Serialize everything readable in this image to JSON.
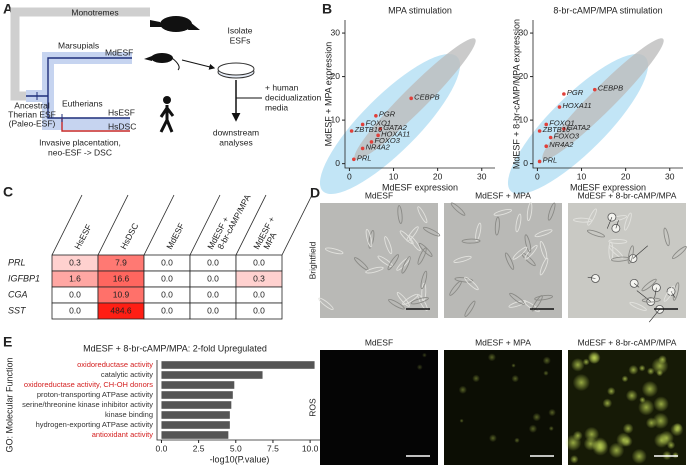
{
  "panel_labels": [
    "A",
    "B",
    "C",
    "D",
    "E"
  ],
  "diagram_a": {
    "clades": [
      "Monotremes",
      "Marsupials",
      "Eutherians"
    ],
    "tips": [
      "MdESF",
      "HsESF",
      "HsDSC"
    ],
    "ancestor": [
      "Ancestral",
      "Therian ESF",
      "(Paleo-ESF)"
    ],
    "innovation": [
      "Invasive placentation,",
      "neo-ESF -> DSC"
    ],
    "steps": {
      "isolate": [
        "Isolate",
        "ESFs"
      ],
      "media": [
        "+ human",
        "decidualization",
        "media"
      ],
      "analyses": [
        "downstream",
        "analyses"
      ]
    }
  },
  "chart_data": [
    {
      "type": "scatter",
      "title": "MPA stimulation",
      "x_label": "MdESF expression",
      "y_label": "MdESF + MPA expression",
      "xlim": [
        -1,
        33
      ],
      "ylim": [
        -1,
        33
      ],
      "xticks": [
        0,
        10,
        20,
        30
      ],
      "yticks": [
        0,
        10,
        20,
        30
      ],
      "color": "#e0403a",
      "labels": [
        "PRL",
        "NR4A2",
        "FOXO3",
        "HOXA11",
        "GATA2",
        "ZBTB16",
        "FOXO1",
        "PGR",
        "CEBPB"
      ],
      "x": [
        1,
        3,
        5,
        6.5,
        7,
        0.5,
        3,
        6,
        14
      ],
      "values": [
        1,
        3.5,
        5,
        6.5,
        8,
        7.5,
        9,
        11,
        15
      ]
    },
    {
      "type": "scatter",
      "title": "8-br-cAMP/MPA stimulation",
      "x_label": "MdESF expression",
      "y_label": "MdESF + 8-br-cAMP/MPA expression",
      "xlim": [
        -1,
        33
      ],
      "ylim": [
        -1,
        33
      ],
      "xticks": [
        0,
        10,
        20,
        30
      ],
      "yticks": [
        0,
        10,
        20,
        30
      ],
      "color": "#e0403a",
      "labels": [
        "PRL",
        "NR4A2",
        "FOXO3",
        "GATA2",
        "ZBTB16",
        "FOXO1",
        "HOXA11",
        "PGR",
        "CEBPB"
      ],
      "x": [
        0.5,
        2,
        3,
        6,
        0.5,
        2,
        5,
        6,
        13
      ],
      "values": [
        0.5,
        4,
        6,
        8,
        7.5,
        9,
        13,
        16,
        17
      ]
    },
    {
      "type": "bar",
      "orientation": "horizontal",
      "title": "MdESF + 8-br-cAMP/MPA: 2-fold Upregulated",
      "x_label": "-log10(P.value)",
      "y_label": "GO: Molecular Function",
      "color": "#555555",
      "categories": [
        "oxidoreductase activity",
        "catalytic activity",
        "oxidoreductase activity, CH-OH donors",
        "proton-transporting ATPase activity",
        "serine/threonine kinase inhibitor activity",
        "kinase binding",
        "hydrogen-exporting ATPase activity",
        "antioxidant activity"
      ],
      "category_colors": [
        "#d42020",
        "#333333",
        "#d42020",
        "#333333",
        "#333333",
        "#333333",
        "#333333",
        "#d42020"
      ],
      "values": [
        10.3,
        6.8,
        4.9,
        4.8,
        4.7,
        4.6,
        4.6,
        4.5
      ],
      "xlim": [
        -0.3,
        10.8
      ],
      "xticks": [
        {
          "value": 0,
          "label": "0.0"
        },
        2.5,
        {
          "value": 5,
          "label": "5.0"
        },
        7.5,
        {
          "value": 10,
          "label": "10.0"
        }
      ]
    }
  ],
  "table_c": {
    "columns": [
      [
        "HsESF"
      ],
      [
        "HsDSC"
      ],
      [
        "MdESF"
      ],
      [
        "MdESF +",
        "8-br-cAMP/MPA"
      ],
      [
        "MdESF +",
        "MPA"
      ]
    ],
    "rows": [
      [
        "PRL",
        "0.3",
        "7.9",
        "0.0",
        "0.0",
        "0.0"
      ],
      [
        "IGFBP1",
        "1.6",
        "16.6",
        "0.0",
        "0.0",
        "0.3"
      ],
      [
        "CGA",
        "0.0",
        "10.9",
        "0.0",
        "0.0",
        "0.0"
      ],
      [
        "SST",
        "0.0",
        "484.6",
        "0.0",
        "0.0",
        "0.0"
      ]
    ]
  },
  "panel_d": {
    "rows": [
      "Brightfield",
      "ROS"
    ],
    "conditions": [
      "MdESF",
      "MdESF + MPA",
      "MdESF + 8-br-cAMP/MPA"
    ]
  }
}
